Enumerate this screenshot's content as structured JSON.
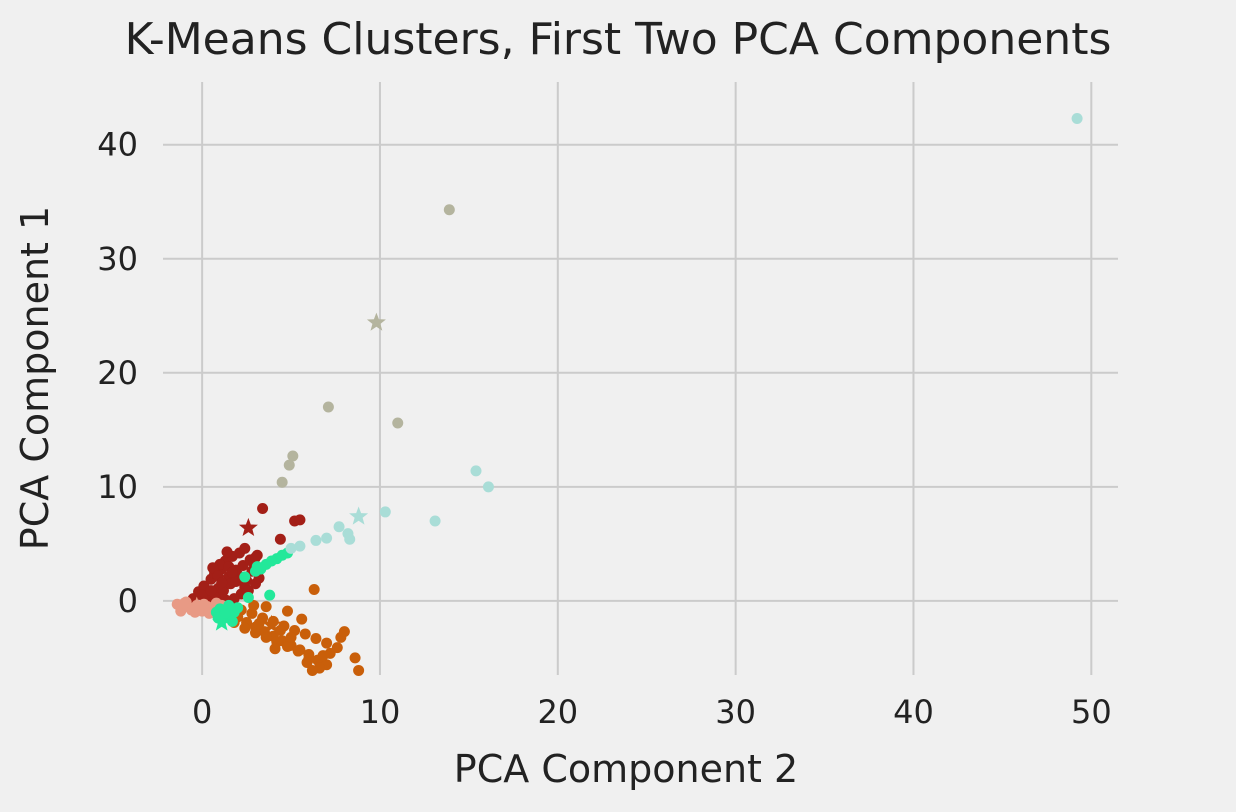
{
  "chart_data": {
    "type": "scatter",
    "title": "K-Means Clusters, First Two PCA Components",
    "xlabel": "PCA Component 2",
    "ylabel": "PCA Component 1",
    "xlim": [
      -2.2,
      51.5
    ],
    "ylim": [
      -6.5,
      45.5
    ],
    "xticks": [
      0,
      10,
      20,
      30,
      40,
      50
    ],
    "yticks": [
      0,
      10,
      20,
      30,
      40
    ],
    "grid": true,
    "legend": "none",
    "marker_note": "filled circles are cluster members; star markers are cluster centroids",
    "series": [
      {
        "color": "#a31f17",
        "points": [
          [
            -0.5,
            0.2
          ],
          [
            -0.2,
            0.8
          ],
          [
            0.1,
            1.3
          ],
          [
            0.3,
            0.5
          ],
          [
            0.5,
            1.9
          ],
          [
            0.7,
            2.4
          ],
          [
            0.9,
            1.1
          ],
          [
            1.1,
            2.8
          ],
          [
            1.3,
            3.5
          ],
          [
            1.5,
            2.1
          ],
          [
            1.7,
            3.9
          ],
          [
            1.9,
            2.7
          ],
          [
            2.1,
            4.2
          ],
          [
            2.3,
            3.1
          ],
          [
            2.5,
            1.8
          ],
          [
            2.7,
            3.6
          ],
          [
            0.4,
            -0.2
          ],
          [
            0.8,
            0.3
          ],
          [
            1.2,
            0.9
          ],
          [
            1.6,
            1.5
          ],
          [
            2.0,
            2.3
          ],
          [
            2.4,
            1.2
          ],
          [
            2.8,
            2.6
          ],
          [
            3.0,
            1.5
          ],
          [
            1.0,
            3.2
          ],
          [
            0.6,
            2.9
          ],
          [
            1.4,
            4.3
          ],
          [
            2.2,
            0.6
          ],
          [
            1.8,
            0.2
          ],
          [
            3.2,
            2.0
          ],
          [
            -0.8,
            -0.3
          ],
          [
            0.0,
            0.5
          ],
          [
            0.2,
            -0.1
          ],
          [
            1.3,
            0.1
          ],
          [
            2.6,
            0.9
          ],
          [
            1.9,
            1.7
          ],
          [
            0.9,
            2.2
          ],
          [
            1.5,
            3.0
          ],
          [
            2.9,
            3.3
          ],
          [
            3.4,
            8.1
          ],
          [
            4.4,
            5.4
          ],
          [
            5.2,
            7.0
          ],
          [
            5.5,
            7.1
          ],
          [
            3.1,
            4.0
          ],
          [
            2.4,
            4.6
          ],
          [
            1.1,
            1.6
          ],
          [
            0.5,
            0.9
          ],
          [
            1.7,
            2.5
          ],
          [
            2.3,
            2.0
          ],
          [
            3.0,
            3.8
          ]
        ]
      },
      {
        "color": "#e89a85",
        "points": [
          [
            -1.4,
            -0.3
          ],
          [
            -1.1,
            -0.6
          ],
          [
            -0.9,
            -0.1
          ],
          [
            -0.6,
            -0.8
          ],
          [
            -0.3,
            -0.4
          ],
          [
            0.0,
            -0.9
          ],
          [
            0.3,
            -0.5
          ],
          [
            0.6,
            -1.0
          ],
          [
            0.9,
            -0.6
          ],
          [
            1.2,
            -0.9
          ],
          [
            -1.2,
            -0.9
          ],
          [
            -0.8,
            -0.5
          ],
          [
            -0.4,
            -1.0
          ],
          [
            0.1,
            -0.3
          ],
          [
            0.5,
            -0.7
          ],
          [
            0.8,
            -0.2
          ],
          [
            1.1,
            -0.4
          ],
          [
            -1.0,
            -0.2
          ],
          [
            -0.2,
            -0.7
          ],
          [
            0.4,
            -1.1
          ]
        ]
      },
      {
        "color": "#c95f0a",
        "points": [
          [
            1.5,
            -1.0
          ],
          [
            2.0,
            -1.4
          ],
          [
            2.5,
            -1.9
          ],
          [
            3.0,
            -2.3
          ],
          [
            3.5,
            -2.7
          ],
          [
            4.0,
            -3.1
          ],
          [
            4.5,
            -3.5
          ],
          [
            5.0,
            -3.9
          ],
          [
            5.5,
            -4.3
          ],
          [
            6.0,
            -4.7
          ],
          [
            6.5,
            -5.2
          ],
          [
            7.0,
            -5.6
          ],
          [
            2.2,
            -0.8
          ],
          [
            2.8,
            -1.1
          ],
          [
            3.4,
            -1.5
          ],
          [
            4.0,
            -1.8
          ],
          [
            4.6,
            -2.2
          ],
          [
            5.2,
            -2.6
          ],
          [
            5.8,
            -2.9
          ],
          [
            6.4,
            -3.3
          ],
          [
            7.0,
            -3.7
          ],
          [
            7.6,
            -4.1
          ],
          [
            1.8,
            -1.9
          ],
          [
            2.4,
            -2.4
          ],
          [
            3.0,
            -2.8
          ],
          [
            3.6,
            -3.2
          ],
          [
            4.2,
            -3.6
          ],
          [
            4.8,
            -4.0
          ],
          [
            5.4,
            -4.4
          ],
          [
            6.0,
            -5.1
          ],
          [
            6.6,
            -5.9
          ],
          [
            6.2,
            -6.1
          ],
          [
            7.2,
            -4.6
          ],
          [
            7.8,
            -3.2
          ],
          [
            6.3,
            1.0
          ],
          [
            8.0,
            -2.7
          ],
          [
            8.6,
            -5.0
          ],
          [
            8.8,
            -6.1
          ],
          [
            3.6,
            -0.5
          ],
          [
            4.8,
            -0.9
          ],
          [
            2.9,
            -0.4
          ],
          [
            5.6,
            -1.6
          ],
          [
            3.2,
            -2.0
          ],
          [
            4.4,
            -2.6
          ],
          [
            5.0,
            -3.2
          ],
          [
            6.8,
            -4.8
          ],
          [
            5.9,
            -5.4
          ],
          [
            4.1,
            -4.2
          ]
        ]
      },
      {
        "color": "#23e89a",
        "points": [
          [
            0.8,
            -1.0
          ],
          [
            1.0,
            -0.7
          ],
          [
            1.2,
            -1.3
          ],
          [
            1.4,
            -0.9
          ],
          [
            1.6,
            -1.4
          ],
          [
            1.8,
            -1.0
          ],
          [
            2.0,
            -0.6
          ],
          [
            1.1,
            -1.6
          ],
          [
            1.5,
            -0.4
          ],
          [
            0.9,
            -1.5
          ],
          [
            1.7,
            -1.8
          ],
          [
            1.3,
            -1.1
          ],
          [
            2.4,
            2.1
          ],
          [
            3.0,
            2.6
          ],
          [
            3.6,
            3.2
          ],
          [
            4.2,
            3.7
          ],
          [
            4.8,
            4.2
          ],
          [
            3.3,
            2.8
          ],
          [
            3.9,
            3.5
          ],
          [
            3.8,
            0.5
          ],
          [
            2.6,
            0.3
          ],
          [
            3.1,
            3.0
          ],
          [
            4.5,
            4.0
          ]
        ]
      },
      {
        "color": "#a9ddd7",
        "points": [
          [
            49.2,
            42.3
          ],
          [
            15.4,
            11.4
          ],
          [
            16.1,
            10.0
          ],
          [
            13.1,
            7.0
          ],
          [
            10.3,
            7.8
          ],
          [
            8.2,
            5.9
          ],
          [
            7.7,
            6.5
          ],
          [
            8.3,
            5.4
          ],
          [
            7.0,
            5.5
          ],
          [
            6.4,
            5.3
          ],
          [
            5.5,
            4.8
          ],
          [
            5.0,
            4.6
          ]
        ]
      },
      {
        "color": "#b4b49e",
        "points": [
          [
            13.9,
            34.3
          ],
          [
            11.0,
            15.6
          ],
          [
            7.1,
            17.0
          ],
          [
            5.1,
            12.7
          ],
          [
            4.9,
            11.9
          ],
          [
            4.5,
            10.4
          ]
        ]
      }
    ],
    "centroids": [
      {
        "color": "#a31f17",
        "x": 2.6,
        "y": 6.4
      },
      {
        "color": "#e89a85",
        "x": -0.3,
        "y": -0.5
      },
      {
        "color": "#c95f0a",
        "x": 3.9,
        "y": -2.1
      },
      {
        "color": "#23e89a",
        "x": 1.1,
        "y": -1.9
      },
      {
        "color": "#a9ddd7",
        "x": 8.8,
        "y": 7.4
      },
      {
        "color": "#b4b49e",
        "x": 9.8,
        "y": 24.4
      }
    ]
  }
}
